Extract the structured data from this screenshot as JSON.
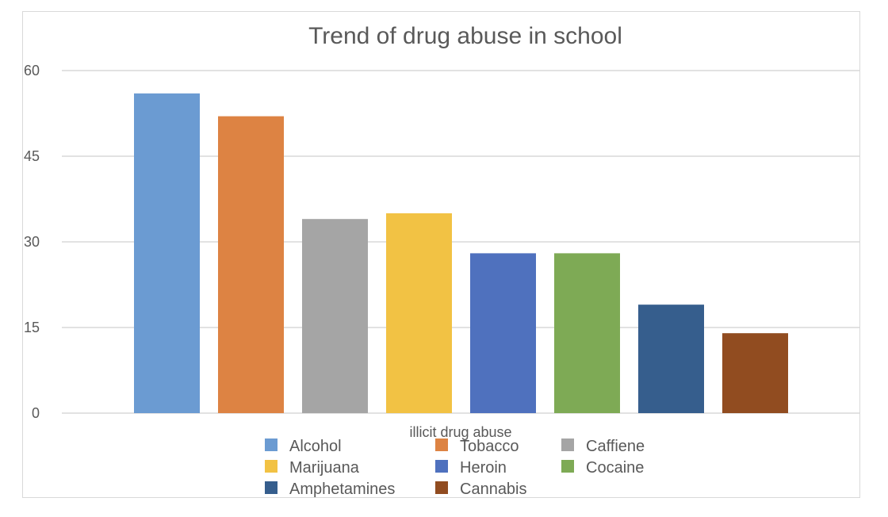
{
  "chart_data": {
    "type": "bar",
    "title": "Trend of drug abuse in school",
    "xlabel": "illicit drug abuse",
    "ylabel": "",
    "ylim": [
      0,
      60
    ],
    "yticks": [
      0,
      15,
      30,
      45,
      60
    ],
    "grid": true,
    "legend_position": "bottom",
    "series": [
      {
        "name": "Alcohol",
        "value": 56,
        "color": "#6b9bd2"
      },
      {
        "name": "Tobacco",
        "value": 52,
        "color": "#dd8343"
      },
      {
        "name": "Caffiene",
        "value": 34,
        "color": "#a5a5a5"
      },
      {
        "name": "Marijuana",
        "value": 35,
        "color": "#f2c244"
      },
      {
        "name": "Heroin",
        "value": 28,
        "color": "#4f71be"
      },
      {
        "name": "Cocaine",
        "value": 28,
        "color": "#7eaa55"
      },
      {
        "name": "Amphetamines",
        "value": 19,
        "color": "#365e8d"
      },
      {
        "name": "Cannabis",
        "value": 14,
        "color": "#914c20"
      }
    ]
  }
}
